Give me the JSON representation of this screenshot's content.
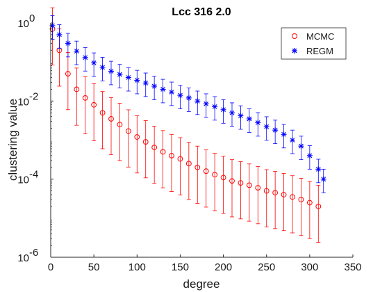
{
  "chart_data": {
    "type": "scatter",
    "title": "Lcc 316 2.0",
    "xlabel": "degree",
    "ylabel": "clustering value",
    "xlim": [
      0,
      350
    ],
    "ylim": [
      1e-06,
      1
    ],
    "yscale": "log",
    "grid": false,
    "legend_position": "top-right",
    "xticks": [
      "0",
      "50",
      "100",
      "150",
      "200",
      "250",
      "300",
      "350"
    ],
    "yticks": [
      {
        "base": "10",
        "exp": "0",
        "value": 1
      },
      {
        "base": "10",
        "exp": "-2",
        "value": 0.01
      },
      {
        "base": "10",
        "exp": "-4",
        "value": 0.0001
      },
      {
        "base": "10",
        "exp": "-6",
        "value": 1e-06
      }
    ],
    "series": [
      {
        "name": "MCMC",
        "marker": "circle",
        "color": "#ff0000",
        "x": [
          2,
          10,
          20,
          30,
          40,
          50,
          60,
          70,
          80,
          90,
          100,
          110,
          120,
          130,
          140,
          150,
          160,
          170,
          180,
          190,
          200,
          210,
          220,
          230,
          240,
          250,
          260,
          270,
          280,
          290,
          300,
          310
        ],
        "y": [
          0.7,
          0.2,
          0.05,
          0.02,
          0.012,
          0.008,
          0.005,
          0.0035,
          0.0025,
          0.0017,
          0.0012,
          0.0009,
          0.00065,
          0.0005,
          0.0004,
          0.00033,
          0.00025,
          0.0002,
          0.00016,
          0.00013,
          0.00011,
          9e-05,
          8e-05,
          7e-05,
          6e-05,
          5e-05,
          4.5e-05,
          4e-05,
          3.5e-05,
          3e-05,
          2.5e-05,
          2e-05
        ]
      },
      {
        "name": "REGM",
        "marker": "asterisk",
        "color": "#0000ff",
        "x": [
          2,
          10,
          20,
          30,
          40,
          50,
          60,
          70,
          80,
          90,
          100,
          110,
          120,
          130,
          140,
          150,
          160,
          170,
          180,
          190,
          200,
          210,
          220,
          230,
          240,
          250,
          260,
          270,
          280,
          290,
          300,
          310,
          316
        ],
        "y": [
          0.85,
          0.5,
          0.3,
          0.19,
          0.13,
          0.095,
          0.073,
          0.058,
          0.048,
          0.04,
          0.034,
          0.029,
          0.024,
          0.02,
          0.017,
          0.014,
          0.012,
          0.01,
          0.0085,
          0.0072,
          0.006,
          0.005,
          0.0042,
          0.0035,
          0.0028,
          0.0022,
          0.0018,
          0.0014,
          0.001,
          0.0007,
          0.0004,
          0.00018,
          0.0001
        ]
      }
    ]
  }
}
